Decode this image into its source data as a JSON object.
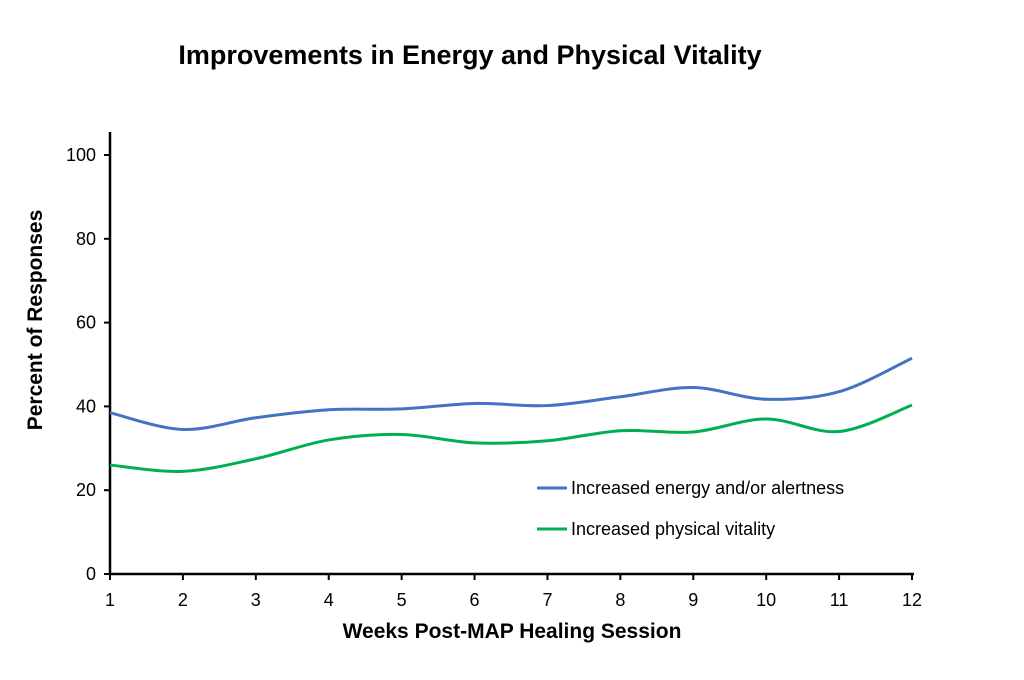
{
  "chart_data": {
    "type": "line",
    "title": "Improvements in Energy and Physical Vitality",
    "xlabel": "Weeks Post-MAP Healing Session",
    "ylabel": "Percent of Responses",
    "x": [
      1,
      2,
      3,
      4,
      5,
      6,
      7,
      8,
      9,
      10,
      11,
      12
    ],
    "xticks": [
      "1",
      "2",
      "3",
      "4",
      "5",
      "6",
      "7",
      "8",
      "9",
      "10",
      "11",
      "12"
    ],
    "ylim": [
      0,
      100
    ],
    "yticks": [
      "0",
      "20",
      "40",
      "60",
      "80",
      "100"
    ],
    "grid": false,
    "legend_position": "bottom-right",
    "series": [
      {
        "name": "Increased energy and/or alertness",
        "color": "#4472C4",
        "values": [
          38.5,
          34.5,
          37.3,
          39.2,
          39.4,
          40.7,
          40.2,
          42.3,
          44.5,
          41.7,
          43.5,
          51.5
        ]
      },
      {
        "name": "Increased physical vitality",
        "color": "#00B050",
        "values": [
          26,
          24.5,
          27.5,
          32,
          33.3,
          31.3,
          31.8,
          34.2,
          33.9,
          37,
          34,
          40.3
        ]
      }
    ]
  }
}
